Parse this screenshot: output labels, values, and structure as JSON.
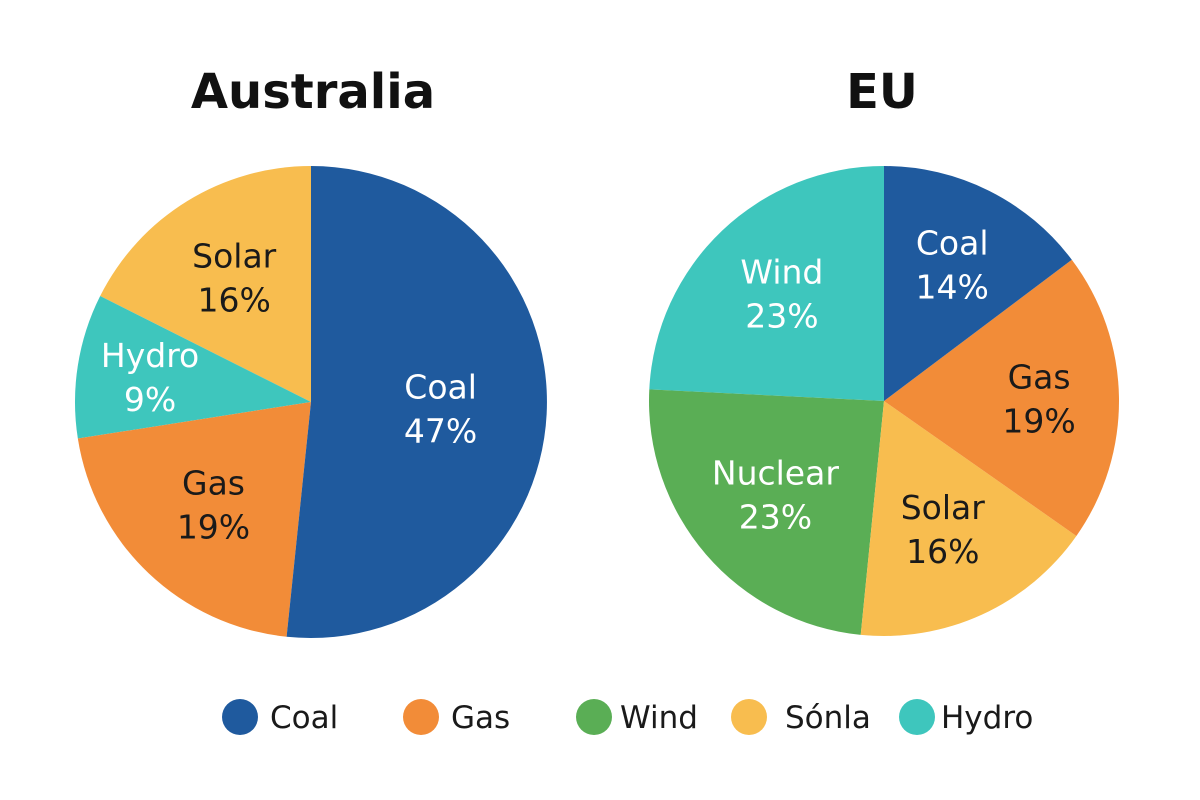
{
  "chart_data": [
    {
      "type": "pie",
      "title": "Australia",
      "slices": [
        {
          "label": "Coal",
          "value": 47,
          "value_label": "47%",
          "color": "#1f5a9e",
          "text_color": "#ffffff"
        },
        {
          "label": "Gas",
          "value": 19,
          "value_label": "19%",
          "color": "#f28c38",
          "text_color": "#1a1a1a"
        },
        {
          "label": "Hydro",
          "value": 9,
          "value_label": "9%",
          "color": "#3ec6bd",
          "text_color": "#ffffff"
        },
        {
          "label": "Solar",
          "value": 16,
          "value_label": "16%",
          "color": "#f8bd4f",
          "text_color": "#1a1a1a"
        }
      ]
    },
    {
      "type": "pie",
      "title": "EU",
      "slices": [
        {
          "label": "Coal",
          "value": 14,
          "value_label": "14%",
          "color": "#1f5a9e",
          "text_color": "#ffffff"
        },
        {
          "label": "Gas",
          "value": 19,
          "value_label": "19%",
          "color": "#f28c38",
          "text_color": "#1a1a1a"
        },
        {
          "label": "Solar",
          "value": 16,
          "value_label": "16%",
          "color": "#f8bd4f",
          "text_color": "#1a1a1a"
        },
        {
          "label": "Nuclear",
          "value": 23,
          "value_label": "23%",
          "color": "#5aae55",
          "text_color": "#ffffff"
        },
        {
          "label": "Wind",
          "value": 23,
          "value_label": "23%",
          "color": "#3ec6bd",
          "text_color": "#ffffff"
        }
      ]
    }
  ],
  "legend": [
    {
      "label": "Coal",
      "color": "#1f5a9e"
    },
    {
      "label": "Gas",
      "color": "#f28c38"
    },
    {
      "label": "Wind",
      "color": "#5aae55"
    },
    {
      "label": "Sónla",
      "color": "#f8bd4f"
    },
    {
      "label": "Hydro",
      "color": "#3ec6bd"
    }
  ]
}
